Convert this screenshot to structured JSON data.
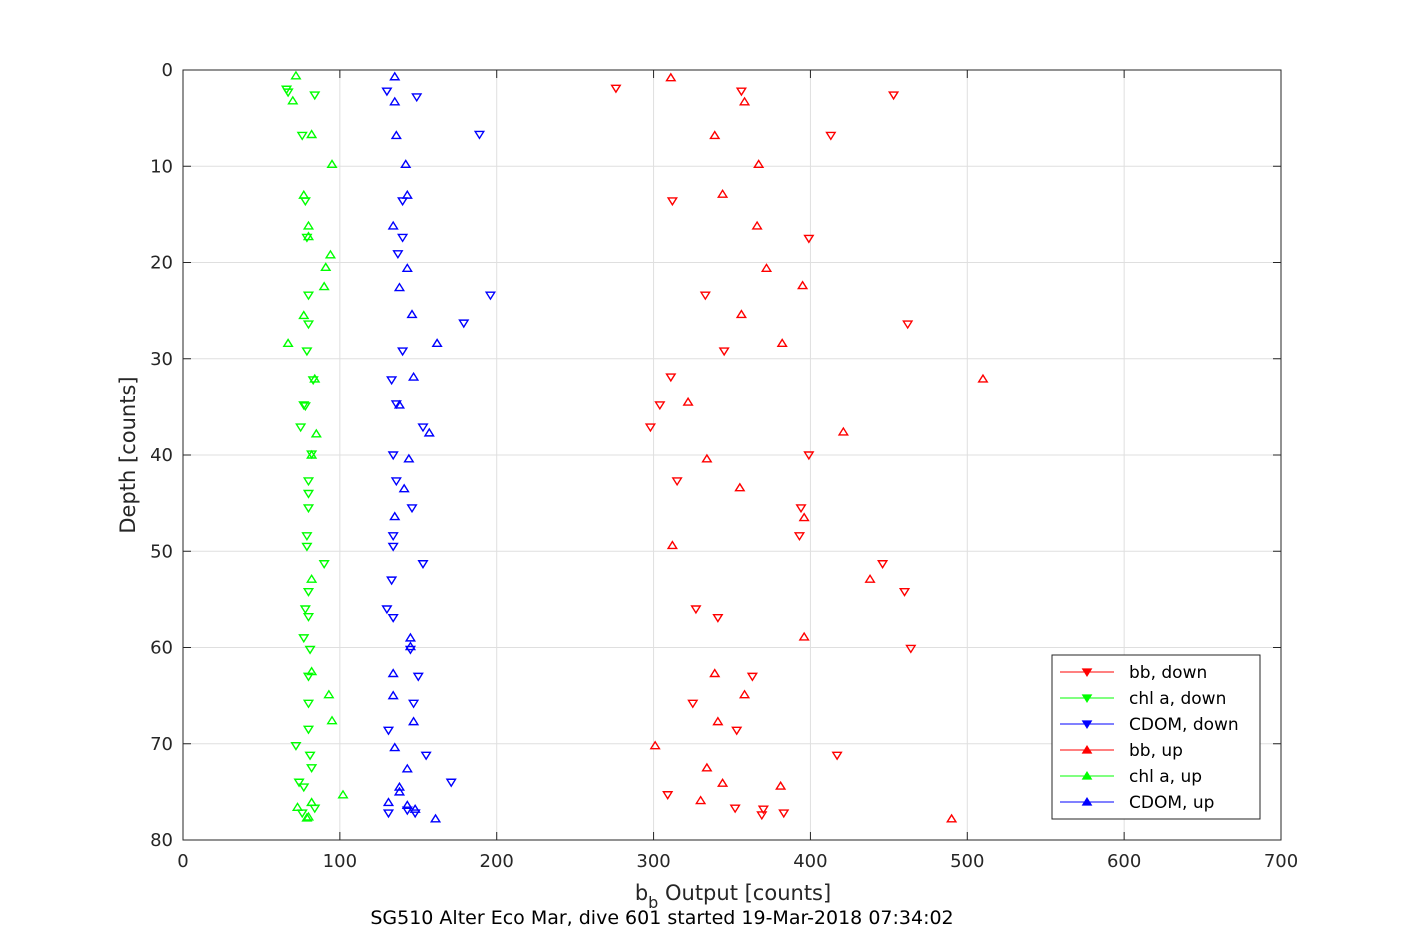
{
  "chart_data": {
    "type": "scatter",
    "xlabel_main": "b",
    "xlabel_sub": "b",
    "xlabel_rest": " Output [counts]",
    "ylabel": "Depth [counts]",
    "caption": "SG510 Alter Eco Mar, dive 601 started 19-Mar-2018 07:34:02",
    "xlim": [
      0,
      700
    ],
    "ylim": [
      0,
      80
    ],
    "y_reversed": true,
    "xticks": [
      0,
      100,
      200,
      300,
      400,
      500,
      600,
      700
    ],
    "yticks": [
      0,
      10,
      20,
      30,
      40,
      50,
      60,
      70,
      80
    ],
    "grid": true,
    "legend_position": "bottom-right",
    "series": [
      {
        "name": "bb, down",
        "color": "#ff0000",
        "marker": "triangle-down",
        "x": [
          276,
          356,
          453,
          413,
          312,
          399,
          333,
          462,
          345,
          311,
          304,
          298,
          399,
          315,
          394,
          393,
          446,
          460,
          327,
          341,
          464,
          363,
          325,
          353,
          417,
          309,
          352,
          369,
          370,
          383
        ],
        "y": [
          1.9,
          2.2,
          2.6,
          6.8,
          13.6,
          17.5,
          23.4,
          26.4,
          29.2,
          31.9,
          34.8,
          37.1,
          40.0,
          42.7,
          45.5,
          48.4,
          51.3,
          54.2,
          56.0,
          56.9,
          60.1,
          63.0,
          65.8,
          68.6,
          71.2,
          75.3,
          76.7,
          77.4,
          76.8,
          77.2
        ]
      },
      {
        "name": "chl a, down",
        "color": "#00ff00",
        "marker": "triangle-down",
        "x": [
          66,
          67,
          84,
          76,
          78,
          79,
          80,
          80,
          79,
          83,
          77,
          78,
          75,
          82,
          80,
          80,
          80,
          79,
          79,
          90,
          80,
          78,
          80,
          77,
          81,
          80,
          80,
          80,
          72,
          81,
          82,
          74,
          77,
          76,
          84
        ],
        "y": [
          2.0,
          2.3,
          2.6,
          6.8,
          13.6,
          17.4,
          23.4,
          26.4,
          29.2,
          32.2,
          34.8,
          34.9,
          37.1,
          39.9,
          42.7,
          44.0,
          45.5,
          48.4,
          49.5,
          51.3,
          54.2,
          56.0,
          56.8,
          59.0,
          60.2,
          63.0,
          65.8,
          68.5,
          70.2,
          71.2,
          72.5,
          74.0,
          74.5,
          77.2,
          76.7
        ]
      },
      {
        "name": "CDOM, down",
        "color": "#0000ff",
        "marker": "triangle-down",
        "x": [
          130,
          149,
          189,
          140,
          140,
          137,
          196,
          179,
          140,
          133,
          136,
          153,
          134,
          136,
          146,
          134,
          134,
          153,
          133,
          130,
          134,
          145,
          150,
          147,
          131,
          155,
          171,
          143,
          131,
          148
        ],
        "y": [
          2.2,
          2.8,
          6.7,
          13.6,
          17.4,
          19.1,
          23.4,
          26.3,
          29.2,
          32.2,
          34.7,
          37.1,
          40.0,
          42.7,
          45.5,
          48.4,
          49.5,
          51.3,
          53.0,
          56.0,
          56.9,
          60.2,
          63.0,
          65.8,
          68.6,
          71.2,
          74.0,
          76.9,
          77.2,
          77.2
        ]
      },
      {
        "name": "bb, up",
        "color": "#ff0000",
        "marker": "triangle-up",
        "x": [
          311,
          358,
          339,
          367,
          344,
          366,
          372,
          395,
          356,
          382,
          510,
          322,
          421,
          334,
          355,
          396,
          312,
          438,
          396,
          339,
          358,
          341,
          301,
          334,
          344,
          381,
          330,
          490
        ],
        "y": [
          0.8,
          3.3,
          6.8,
          9.8,
          12.9,
          16.2,
          20.6,
          22.4,
          25.4,
          28.4,
          32.1,
          34.5,
          37.6,
          40.4,
          43.4,
          46.5,
          49.4,
          52.9,
          58.9,
          62.7,
          64.9,
          67.7,
          70.2,
          72.5,
          74.1,
          74.4,
          75.9,
          77.8
        ]
      },
      {
        "name": "chl a, up",
        "color": "#00ff00",
        "marker": "triangle-up",
        "x": [
          72,
          70,
          82,
          95,
          77,
          80,
          80,
          94,
          91,
          90,
          77,
          67,
          84,
          85,
          82,
          82,
          82,
          93,
          95,
          102,
          73,
          82,
          80,
          79
        ],
        "y": [
          0.6,
          3.2,
          6.7,
          9.8,
          13.0,
          16.2,
          17.3,
          19.2,
          20.5,
          22.5,
          25.5,
          28.4,
          32.1,
          37.8,
          40.0,
          52.9,
          62.5,
          64.9,
          67.6,
          75.3,
          76.6,
          76.1,
          77.6,
          77.7
        ]
      },
      {
        "name": "CDOM, up",
        "color": "#0000ff",
        "marker": "triangle-up",
        "x": [
          135,
          135,
          136,
          142,
          143,
          134,
          143,
          138,
          146,
          162,
          147,
          138,
          157,
          144,
          141,
          135,
          145,
          145,
          134,
          134,
          147,
          135,
          143,
          138,
          138,
          131,
          143,
          148,
          161
        ],
        "y": [
          0.7,
          3.3,
          6.8,
          9.8,
          13.0,
          16.2,
          20.6,
          22.6,
          25.4,
          28.4,
          31.9,
          34.8,
          37.7,
          40.4,
          43.5,
          46.4,
          59.0,
          59.9,
          62.7,
          65.0,
          67.7,
          70.4,
          72.6,
          74.5,
          75.0,
          76.1,
          76.4,
          76.8,
          77.8
        ]
      }
    ]
  }
}
